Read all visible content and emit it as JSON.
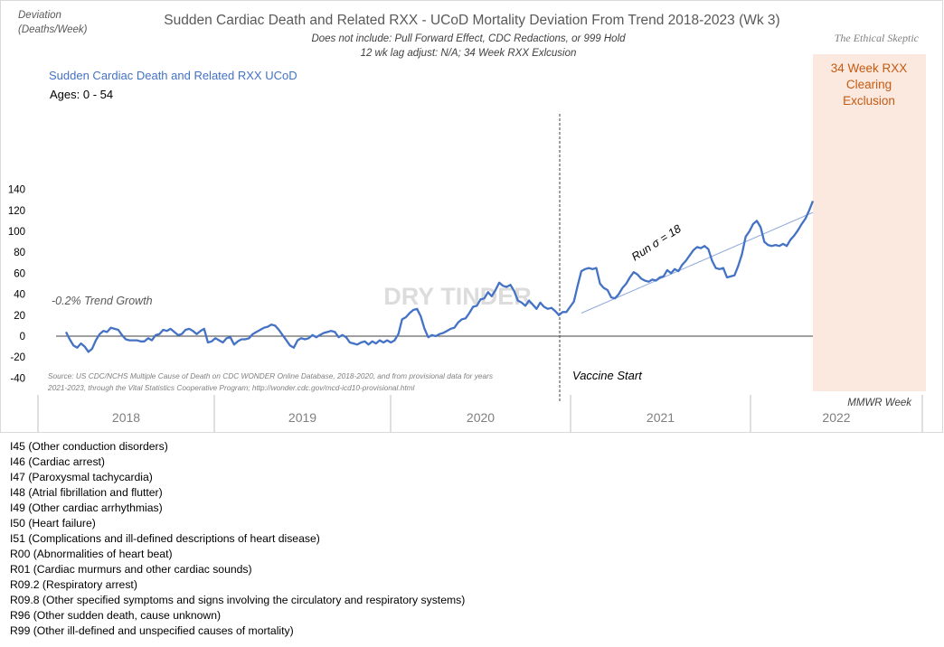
{
  "chart_data": {
    "type": "line",
    "title": "Sudden Cardiac Death and Related RXX - UCoD Mortality Deviation From Trend  2018-2023 (Wk 3)",
    "subtitle_lines": [
      "Does not include: Pull Forward Effect,  CDC Redactions, or 999 Hold",
      "12 wk lag adjust: N/A; 34 Week RXX Exlcusion"
    ],
    "brand": "The Ethical Skeptic",
    "ylabel_lines": [
      "Deviation",
      "(Deaths/Week)"
    ],
    "xlabel": "MMWR Week",
    "ylim": [
      -40,
      140
    ],
    "y_ticks": [
      -40,
      -20,
      0,
      20,
      40,
      60,
      80,
      100,
      120,
      140
    ],
    "year_labels": [
      "2018",
      "2019",
      "2020",
      "2021",
      "2022"
    ],
    "series": [
      {
        "name": "Sudden Cardiac Death and Related RXX UCoD",
        "color": "#4472C4",
        "subtitle": "Ages: 0 - 54",
        "points": [
          [
            1,
            4
          ],
          [
            2,
            -3
          ],
          [
            3,
            -9
          ],
          [
            4,
            -11
          ],
          [
            5,
            -7
          ],
          [
            6,
            -10
          ],
          [
            7,
            -15
          ],
          [
            8,
            -12
          ],
          [
            9,
            -4
          ],
          [
            10,
            2
          ],
          [
            11,
            5
          ],
          [
            12,
            4
          ],
          [
            13,
            8
          ],
          [
            14,
            7
          ],
          [
            15,
            6
          ],
          [
            16,
            1
          ],
          [
            17,
            -3
          ],
          [
            18,
            -4
          ],
          [
            19,
            -4
          ],
          [
            20,
            -4
          ],
          [
            21,
            -5
          ],
          [
            22,
            -5
          ],
          [
            23,
            -2
          ],
          [
            24,
            -4
          ],
          [
            25,
            1
          ],
          [
            26,
            2
          ],
          [
            27,
            6
          ],
          [
            28,
            5
          ],
          [
            29,
            7
          ],
          [
            30,
            4
          ],
          [
            31,
            1
          ],
          [
            32,
            2
          ],
          [
            33,
            6
          ],
          [
            34,
            7
          ],
          [
            35,
            5
          ],
          [
            36,
            2
          ],
          [
            37,
            5
          ],
          [
            38,
            7
          ],
          [
            39,
            -6
          ],
          [
            40,
            -5
          ],
          [
            41,
            -2
          ],
          [
            42,
            -4
          ],
          [
            43,
            -6
          ],
          [
            44,
            -2
          ],
          [
            45,
            -1
          ],
          [
            46,
            -8
          ],
          [
            47,
            -5
          ],
          [
            48,
            -3
          ],
          [
            49,
            -3
          ],
          [
            50,
            -2
          ],
          [
            51,
            2
          ],
          [
            52,
            4
          ],
          [
            53,
            6
          ],
          [
            54,
            8
          ],
          [
            55,
            9
          ],
          [
            56,
            11
          ],
          [
            57,
            10
          ],
          [
            58,
            6
          ],
          [
            59,
            1
          ],
          [
            60,
            -4
          ],
          [
            61,
            -9
          ],
          [
            62,
            -11
          ],
          [
            63,
            -4
          ],
          [
            64,
            -2
          ],
          [
            65,
            -3
          ],
          [
            66,
            -2
          ],
          [
            67,
            1
          ],
          [
            68,
            -1
          ],
          [
            69,
            1
          ],
          [
            70,
            3
          ],
          [
            71,
            4
          ],
          [
            72,
            5
          ],
          [
            73,
            4
          ],
          [
            74,
            -1
          ],
          [
            75,
            1
          ],
          [
            76,
            -1
          ],
          [
            77,
            -6
          ],
          [
            78,
            -7
          ],
          [
            79,
            -8
          ],
          [
            80,
            -6
          ],
          [
            81,
            -5
          ],
          [
            82,
            -8
          ],
          [
            83,
            -5
          ],
          [
            84,
            -7
          ],
          [
            85,
            -4
          ],
          [
            86,
            -6
          ],
          [
            87,
            -4
          ],
          [
            88,
            -6
          ],
          [
            89,
            -4
          ],
          [
            90,
            2
          ],
          [
            91,
            16
          ],
          [
            92,
            18
          ],
          [
            93,
            22
          ],
          [
            94,
            25
          ],
          [
            95,
            26
          ],
          [
            96,
            19
          ],
          [
            97,
            7
          ],
          [
            98,
            -1
          ],
          [
            99,
            1
          ],
          [
            100,
            0
          ],
          [
            101,
            2
          ],
          [
            102,
            3
          ],
          [
            103,
            5
          ],
          [
            104,
            7
          ],
          [
            105,
            8
          ],
          [
            106,
            13
          ],
          [
            107,
            16
          ],
          [
            108,
            17
          ],
          [
            109,
            22
          ],
          [
            110,
            28
          ],
          [
            111,
            29
          ],
          [
            112,
            35
          ],
          [
            113,
            36
          ],
          [
            114,
            42
          ],
          [
            115,
            38
          ],
          [
            116,
            44
          ],
          [
            117,
            51
          ],
          [
            118,
            48
          ],
          [
            119,
            47
          ],
          [
            120,
            49
          ],
          [
            121,
            43
          ],
          [
            122,
            34
          ],
          [
            123,
            32
          ],
          [
            124,
            29
          ],
          [
            125,
            34
          ],
          [
            126,
            30
          ],
          [
            127,
            26
          ],
          [
            128,
            32
          ],
          [
            129,
            28
          ],
          [
            130,
            26
          ],
          [
            131,
            27
          ],
          [
            132,
            24
          ],
          [
            133,
            20
          ],
          [
            134,
            23
          ],
          [
            135,
            23
          ],
          [
            136,
            28
          ],
          [
            137,
            33
          ],
          [
            138,
            48
          ],
          [
            139,
            62
          ],
          [
            140,
            64
          ],
          [
            141,
            65
          ],
          [
            142,
            64
          ],
          [
            143,
            65
          ],
          [
            144,
            50
          ],
          [
            145,
            46
          ],
          [
            146,
            44
          ],
          [
            147,
            37
          ],
          [
            148,
            36
          ],
          [
            149,
            40
          ],
          [
            150,
            46
          ],
          [
            151,
            50
          ],
          [
            152,
            56
          ],
          [
            153,
            61
          ],
          [
            154,
            59
          ],
          [
            155,
            55
          ],
          [
            156,
            53
          ],
          [
            157,
            52
          ],
          [
            158,
            54
          ],
          [
            159,
            53
          ],
          [
            160,
            56
          ],
          [
            161,
            57
          ],
          [
            162,
            63
          ],
          [
            163,
            60
          ],
          [
            164,
            64
          ],
          [
            165,
            62
          ],
          [
            166,
            68
          ],
          [
            167,
            72
          ],
          [
            168,
            77
          ],
          [
            169,
            82
          ],
          [
            170,
            85
          ],
          [
            171,
            84
          ],
          [
            172,
            86
          ],
          [
            173,
            83
          ],
          [
            174,
            72
          ],
          [
            175,
            65
          ],
          [
            176,
            64
          ],
          [
            177,
            65
          ],
          [
            178,
            56
          ],
          [
            179,
            57
          ],
          [
            180,
            58
          ],
          [
            181,
            67
          ],
          [
            182,
            78
          ],
          [
            183,
            95
          ],
          [
            184,
            100
          ],
          [
            185,
            107
          ],
          [
            186,
            110
          ],
          [
            187,
            104
          ],
          [
            188,
            90
          ],
          [
            189,
            87
          ],
          [
            190,
            86
          ],
          [
            191,
            87
          ],
          [
            192,
            86
          ],
          [
            193,
            88
          ],
          [
            194,
            86
          ],
          [
            195,
            92
          ],
          [
            196,
            96
          ],
          [
            197,
            101
          ],
          [
            198,
            107
          ],
          [
            199,
            112
          ],
          [
            200,
            120
          ],
          [
            201,
            129
          ]
        ]
      }
    ],
    "trend_label": "-0.2% Trend Growth",
    "run_label": "Run σ = 18",
    "run_trend": {
      "x": [
        139,
        201
      ],
      "y": [
        22,
        118
      ]
    },
    "vaccine_label": "Vaccine Start",
    "vaccine_week": 139,
    "exclusion_label_lines": [
      "34 Week RXX",
      "Clearing",
      "Exclusion"
    ],
    "exclusion_color": "#FBE9DF",
    "exclusion_text_color": "#C55A11",
    "watermark": "DRY TINDER",
    "source_lines": [
      "Source: US CDC/NCHS Multiple Cause of Death on CDC WONDER Online Database, 2018-2020, and from provisional data for years",
      "2021-2023, through the Vital Statistics Cooperative Program; http://wonder.cdc.gov/mcd-icd10-provisional.html"
    ]
  },
  "icd_list": [
    "I45 (Other conduction  disorders)",
    "I46 (Cardiac arrest)",
    "I47 (Paroxysmal tachycardia)",
    "I48 (Atrial fibrillation  and flutter)",
    "I49 (Other cardiac arrhythmias)",
    "I50 (Heart failure)",
    "I51 (Complications  and ill-defined  descriptions of heart disease)",
    "R00 (Abnormalities of heart beat)",
    "R01 (Cardiac murmurs and other cardiac sounds)",
    "R09.2 (Respiratory arrest)",
    "R09.8 (Other specified  symptoms and signs involving  the circulatory and respiratory systems)",
    "R96 (Other sudden death, cause unknown)",
    "R99 (Other ill-defined  and unspecified causes of mortality)"
  ]
}
